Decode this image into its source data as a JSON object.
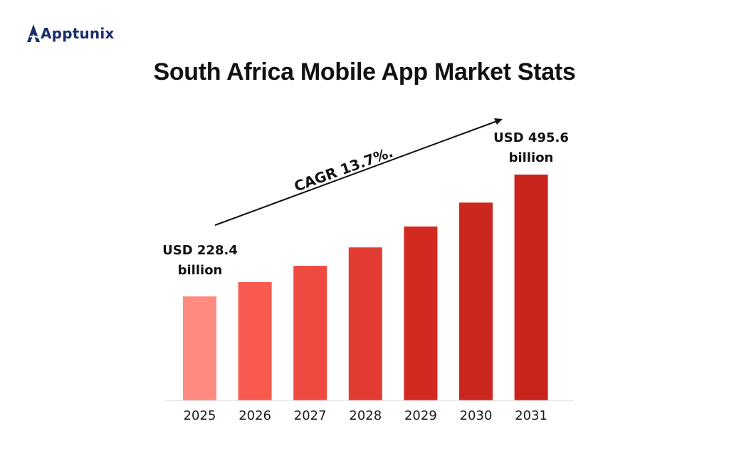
{
  "brand": {
    "name": "Apptunix",
    "logo_color": "#1b2e6b",
    "logo_icon": "triangle-a-icon"
  },
  "chart_data": {
    "type": "bar",
    "title": "South Africa Mobile App Market Stats",
    "categories": [
      "2025",
      "2026",
      "2027",
      "2028",
      "2029",
      "2030",
      "2031"
    ],
    "values": [
      228.4,
      259.7,
      295.3,
      335.8,
      381.8,
      434.1,
      495.6
    ],
    "unit": "USD billion",
    "colors": [
      "#ff8a80",
      "#f85a4f",
      "#ee4b40",
      "#e23b31",
      "#d22a21",
      "#cc271f",
      "#c8241c"
    ],
    "annotations": {
      "first_value": [
        "USD 228.4",
        "billion"
      ],
      "last_value": [
        "USD 495.6",
        "billion"
      ],
      "trend": "CAGR 13.7%."
    },
    "xlabel": "",
    "ylabel": "",
    "ylim": [
      0,
      495.6
    ],
    "grid": false,
    "legend": "none"
  }
}
